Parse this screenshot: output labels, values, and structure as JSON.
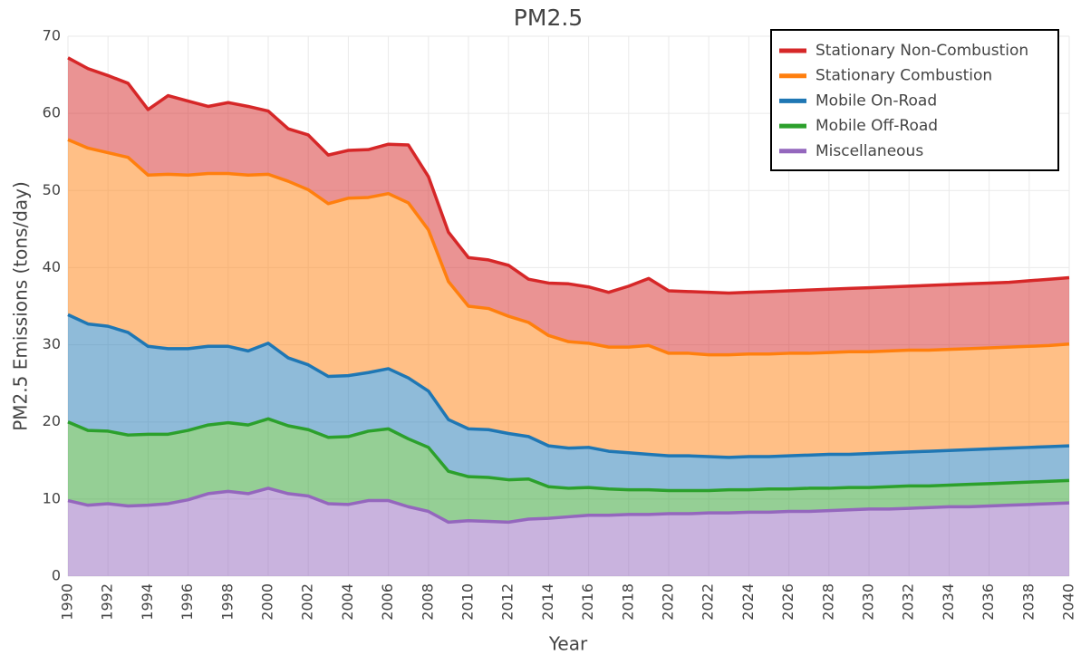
{
  "chart_data": {
    "type": "stacked-area",
    "title": "PM2.5",
    "x_label": "Year",
    "y_label": "PM2.5 Emissions (tons/day)",
    "x": [
      1990,
      1991,
      1992,
      1993,
      1994,
      1995,
      1996,
      1997,
      1998,
      1999,
      2000,
      2001,
      2002,
      2003,
      2004,
      2005,
      2006,
      2007,
      2008,
      2009,
      2010,
      2011,
      2012,
      2013,
      2014,
      2015,
      2016,
      2017,
      2018,
      2019,
      2020,
      2021,
      2022,
      2023,
      2024,
      2025,
      2026,
      2027,
      2028,
      2029,
      2030,
      2031,
      2032,
      2033,
      2034,
      2035,
      2036,
      2037,
      2038,
      2039,
      2040
    ],
    "series": [
      {
        "name": "Stationary Non-Combustion",
        "color": "#d62728",
        "values": [
          10.6,
          10.3,
          10.0,
          9.6,
          8.5,
          10.2,
          9.6,
          8.7,
          9.2,
          8.9,
          8.2,
          6.8,
          7.1,
          6.3,
          6.2,
          6.2,
          6.4,
          7.5,
          6.9,
          6.4,
          6.3,
          6.3,
          6.6,
          5.6,
          6.8,
          7.5,
          7.3,
          7.1,
          7.9,
          8.7,
          8.1,
          8.0,
          8.1,
          8.0,
          8.0,
          8.1,
          8.1,
          8.2,
          8.2,
          8.2,
          8.3,
          8.3,
          8.3,
          8.4,
          8.4,
          8.4,
          8.4,
          8.4,
          8.5,
          8.6,
          8.6
        ]
      },
      {
        "name": "Stationary Combustion",
        "color": "#ff7f0e",
        "values": [
          22.7,
          22.8,
          22.5,
          22.7,
          22.2,
          22.6,
          22.5,
          22.4,
          22.4,
          22.8,
          21.9,
          22.9,
          22.7,
          22.4,
          23.0,
          22.7,
          22.7,
          22.7,
          20.9,
          17.9,
          15.9,
          15.7,
          15.2,
          14.8,
          14.3,
          13.8,
          13.5,
          13.5,
          13.7,
          14.1,
          13.3,
          13.3,
          13.2,
          13.3,
          13.3,
          13.3,
          13.3,
          13.2,
          13.2,
          13.3,
          13.2,
          13.2,
          13.2,
          13.1,
          13.1,
          13.1,
          13.1,
          13.1,
          13.1,
          13.1,
          13.2
        ]
      },
      {
        "name": "Mobile On-Road",
        "color": "#1f77b4",
        "values": [
          13.9,
          13.8,
          13.6,
          13.3,
          11.4,
          11.1,
          10.6,
          10.2,
          9.9,
          9.6,
          9.8,
          8.8,
          8.4,
          7.9,
          7.9,
          7.6,
          7.8,
          7.9,
          7.3,
          6.7,
          6.2,
          6.2,
          6.0,
          5.5,
          5.3,
          5.2,
          5.2,
          4.9,
          4.8,
          4.6,
          4.5,
          4.5,
          4.4,
          4.2,
          4.3,
          4.2,
          4.3,
          4.3,
          4.4,
          4.3,
          4.4,
          4.4,
          4.4,
          4.5,
          4.5,
          4.5,
          4.5,
          4.5,
          4.5,
          4.5,
          4.5
        ]
      },
      {
        "name": "Mobile Off-Road",
        "color": "#2ca02c",
        "values": [
          10.2,
          9.7,
          9.4,
          9.2,
          9.2,
          9.0,
          9.0,
          8.9,
          8.9,
          8.9,
          9.0,
          8.8,
          8.6,
          8.6,
          8.8,
          9.0,
          9.3,
          8.8,
          8.3,
          6.6,
          5.7,
          5.7,
          5.5,
          5.2,
          4.1,
          3.7,
          3.6,
          3.4,
          3.2,
          3.2,
          3.0,
          3.0,
          2.9,
          3.0,
          2.9,
          3.0,
          2.9,
          3.0,
          2.9,
          2.9,
          2.8,
          2.9,
          2.9,
          2.8,
          2.8,
          2.9,
          2.9,
          2.9,
          2.9,
          2.9,
          2.9
        ]
      },
      {
        "name": "Miscellaneous",
        "color": "#9467bd",
        "values": [
          9.8,
          9.2,
          9.4,
          9.1,
          9.2,
          9.4,
          9.9,
          10.7,
          11.0,
          10.7,
          11.4,
          10.7,
          10.4,
          9.4,
          9.3,
          9.8,
          9.8,
          9.0,
          8.4,
          7.0,
          7.2,
          7.1,
          7.0,
          7.4,
          7.5,
          7.7,
          7.9,
          7.9,
          8.0,
          8.0,
          8.1,
          8.1,
          8.2,
          8.2,
          8.3,
          8.3,
          8.4,
          8.4,
          8.5,
          8.6,
          8.7,
          8.7,
          8.8,
          8.9,
          9.0,
          9.0,
          9.1,
          9.2,
          9.3,
          9.4,
          9.5
        ]
      }
    ],
    "xlim": [
      1990,
      2040
    ],
    "xticks": [
      1990,
      1992,
      1994,
      1996,
      1998,
      2000,
      2002,
      2004,
      2006,
      2008,
      2010,
      2012,
      2014,
      2016,
      2018,
      2020,
      2022,
      2024,
      2026,
      2028,
      2030,
      2032,
      2034,
      2036,
      2038,
      2040
    ],
    "ylim": [
      0,
      70
    ],
    "yticks": [
      0,
      10,
      20,
      30,
      40,
      50,
      60,
      70
    ],
    "grid": true,
    "legend": "top-right",
    "fill_opacity": 0.5
  }
}
